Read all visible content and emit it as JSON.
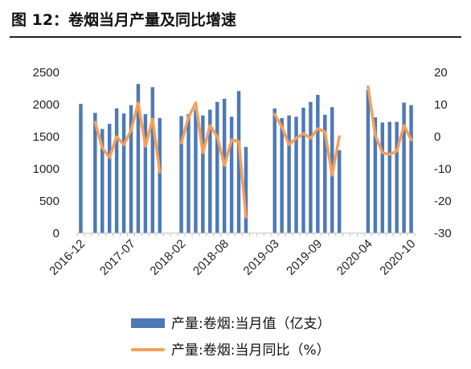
{
  "figure": {
    "title": "图 12：卷烟当月产量及同比增速"
  },
  "chart_data": {
    "type": "bar+line",
    "title": "",
    "x_tick_labels": [
      "2016-12",
      "2017-07",
      "2018-02",
      "2018-08",
      "2019-03",
      "2019-09",
      "2020-04",
      "2020-10"
    ],
    "x_tick_index": [
      0,
      7,
      14,
      20,
      27,
      33,
      40,
      46
    ],
    "left_axis": {
      "min": 0,
      "max": 2500,
      "ticks": [
        0,
        500,
        1000,
        1500,
        2000,
        2500
      ]
    },
    "right_axis": {
      "min": -30,
      "max": 20,
      "ticks": [
        -30,
        -20,
        -10,
        0,
        10,
        20
      ]
    },
    "series": [
      {
        "name": "产量:卷烟:当月值（亿支）",
        "axis": "left",
        "render": "bar",
        "color": "#4E79B8",
        "values": [
          2010,
          null,
          1870,
          1620,
          1700,
          1940,
          1860,
          1990,
          2320,
          1850,
          2270,
          1790,
          null,
          null,
          1820,
          1850,
          1920,
          1830,
          1920,
          2040,
          2090,
          1810,
          2210,
          1340,
          null,
          null,
          null,
          1940,
          1790,
          1830,
          1810,
          1950,
          2040,
          2150,
          1840,
          1960,
          1290,
          null,
          null,
          null,
          2230,
          1800,
          1720,
          1730,
          1730,
          2030,
          1990
        ]
      },
      {
        "name": "产量:卷烟:当月同比（%）",
        "axis": "right",
        "render": "line",
        "color": "#F4A05A",
        "values": [
          null,
          null,
          4.5,
          -3.5,
          -6.5,
          0,
          -2.5,
          2,
          10.5,
          -3,
          5.5,
          -11,
          null,
          null,
          -2,
          6,
          10.5,
          -5,
          3.5,
          0,
          -9,
          -1,
          -1.5,
          -25,
          null,
          null,
          null,
          7,
          3,
          -2.5,
          -0.5,
          1,
          -0.5,
          2.5,
          1.5,
          -12,
          0,
          null,
          null,
          null,
          15.5,
          0.5,
          -5,
          -5.5,
          -4.5,
          3.5,
          -1
        ]
      }
    ],
    "legend": {
      "position": "bottom",
      "entries": [
        "产量:卷烟:当月值（亿支）",
        "产量:卷烟:当月同比（%）"
      ]
    },
    "grid": false
  }
}
